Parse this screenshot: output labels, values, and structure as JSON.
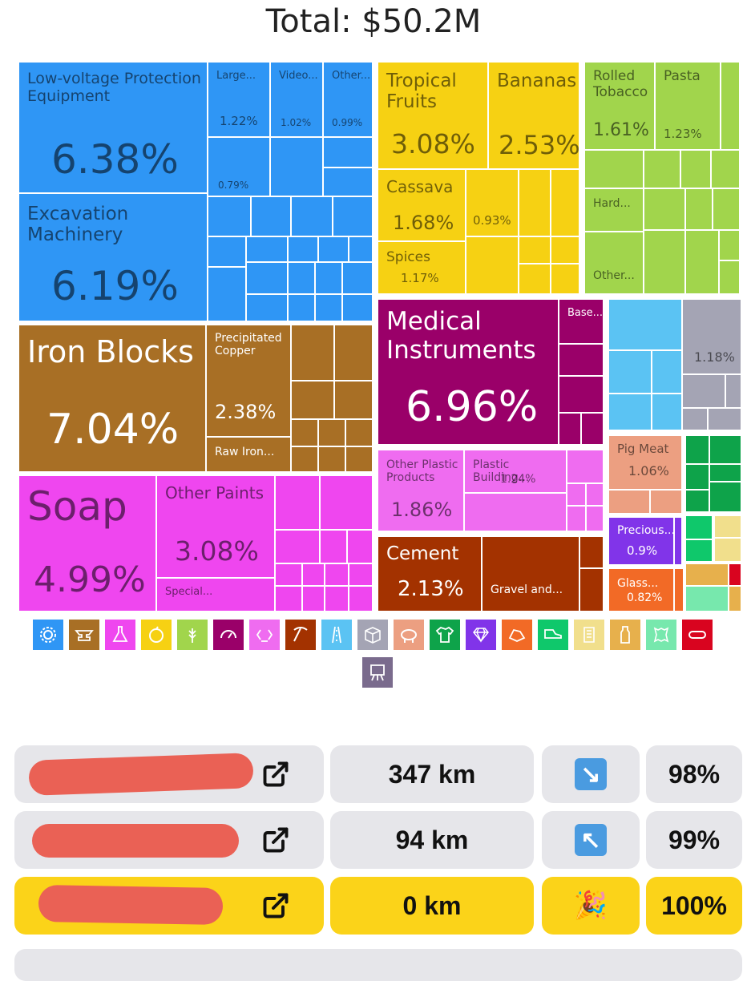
{
  "header": {
    "total": "Total: $50.2M"
  },
  "treemap": {
    "low_voltage": {
      "name": "Low-voltage Protection Equipment",
      "pct": "6.38%"
    },
    "excavation": {
      "name": "Excavation Machinery",
      "pct": "6.19%"
    },
    "large": {
      "name": "Large...",
      "pct": "1.22%"
    },
    "video": {
      "name": "Video...",
      "pct": "1.02%"
    },
    "other_elec": {
      "name": "Other...",
      "pct": "0.99%"
    },
    "small_079": {
      "pct": "0.79%"
    },
    "iron_blocks": {
      "name": "Iron Blocks",
      "pct": "7.04%"
    },
    "precip_copper": {
      "name": "Precipitated Copper",
      "pct": "2.38%"
    },
    "raw_iron": {
      "name": "Raw Iron..."
    },
    "soap": {
      "name": "Soap",
      "pct": "4.99%"
    },
    "other_paints": {
      "name": "Other Paints",
      "pct": "3.08%"
    },
    "special": {
      "name": "Special..."
    },
    "tropical": {
      "name": "Tropical Fruits",
      "pct": "3.08%"
    },
    "bananas": {
      "name": "Bananas",
      "pct": "2.53%"
    },
    "cassava": {
      "name": "Cassava",
      "pct": "1.68%"
    },
    "small_093": {
      "pct": "0.93%"
    },
    "spices": {
      "name": "Spices",
      "pct": "1.17%"
    },
    "rolled_tobacco": {
      "name": "Rolled Tobacco",
      "pct": "1.61%"
    },
    "pasta": {
      "name": "Pasta",
      "pct": "1.23%"
    },
    "hard": {
      "name": "Hard..."
    },
    "other_veg": {
      "name": "Other..."
    },
    "medical": {
      "name": "Medical Instruments",
      "pct": "6.96%"
    },
    "base": {
      "name": "Base..."
    },
    "grey_118": {
      "pct": "1.18%"
    },
    "other_plastic": {
      "name": "Other Plastic Products",
      "pct": "1.86%"
    },
    "plastic_building": {
      "name": "Plastic Building...",
      "pct": "1.24%"
    },
    "pig_meat": {
      "name": "Pig Meat",
      "pct": "1.06%"
    },
    "precious": {
      "name": "Precious...",
      "pct": "0.9%"
    },
    "cement": {
      "name": "Cement",
      "pct": "2.13%"
    },
    "gravel": {
      "name": "Gravel and..."
    },
    "glass": {
      "name": "Glass...",
      "pct": "0.82%"
    }
  },
  "legend": {
    "icons": [
      "gear-icon",
      "anvil-icon",
      "flask-icon",
      "fruit-icon",
      "wheat-icon",
      "gauge-icon",
      "recycle-icon",
      "pickaxe-icon",
      "road-icon",
      "box-icon",
      "pig-icon",
      "shirt-icon",
      "gem-icon",
      "stone-icon",
      "shoe-icon",
      "scroll-icon",
      "bottle-icon",
      "hide-icon",
      "pipe-icon",
      "easel-icon"
    ],
    "colors": [
      "#2f96f5",
      "#a86f25",
      "#ef46ef",
      "#f6d113",
      "#a1d54c",
      "#9a0069",
      "#ef6cf0",
      "#a33200",
      "#5bc3f3",
      "#a4a4b4",
      "#ec9f81",
      "#0ea34a",
      "#8134e9",
      "#f26a26",
      "#0fc86b",
      "#f1df8c",
      "#e7b04c",
      "#77e8ad",
      "#d9041f",
      "#7a6b8d"
    ]
  },
  "results": [
    {
      "distance": "347 km",
      "direction": "↘",
      "percent": "98%"
    },
    {
      "distance": "94 km",
      "direction": "↖",
      "percent": "99%"
    },
    {
      "distance": "0 km",
      "direction": "🎉",
      "percent": "100%"
    }
  ]
}
